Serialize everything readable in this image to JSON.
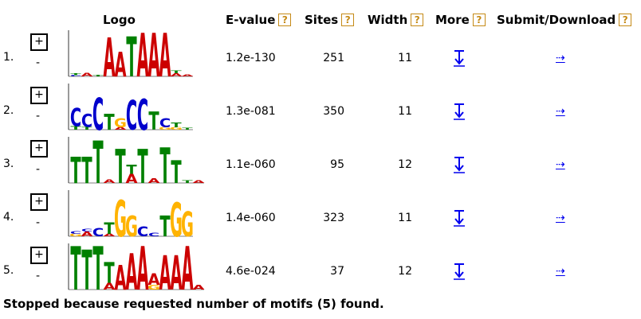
{
  "headers": {
    "logo": "Logo",
    "evalue": "E-value",
    "sites": "Sites",
    "width": "Width",
    "more": "More",
    "submit": "Submit/Download",
    "help_glyph": "?"
  },
  "controls": {
    "expand": "+",
    "collapse": "-",
    "download_arrow": "⇢"
  },
  "colors": {
    "A": "#cc0000",
    "C": "#0000cc",
    "G": "#ffb300",
    "T": "#008000",
    "link": "#0000ee",
    "help": "#c58a17"
  },
  "motifs": [
    {
      "num": "1.",
      "evalue": "1.2e-130",
      "sites": "251",
      "width": "11",
      "logo": [
        [
          [
            "C",
            0.03
          ],
          [
            "T",
            0.04
          ]
        ],
        [
          [
            "A",
            0.08
          ]
        ],
        [
          [
            "T",
            0.03
          ]
        ],
        [
          [
            "A",
            0.85
          ]
        ],
        [
          [
            "A",
            0.55
          ]
        ],
        [
          [
            "T",
            0.88
          ]
        ],
        [
          [
            "A",
            0.95
          ]
        ],
        [
          [
            "A",
            0.95
          ]
        ],
        [
          [
            "A",
            0.95
          ]
        ],
        [
          [
            "A",
            0.07
          ],
          [
            "T",
            0.05
          ]
        ],
        [
          [
            "A",
            0.04
          ]
        ]
      ]
    },
    {
      "num": "2.",
      "evalue": "1.3e-081",
      "sites": "350",
      "width": "11",
      "logo": [
        [
          [
            "T",
            0.08
          ],
          [
            "C",
            0.4
          ]
        ],
        [
          [
            "T",
            0.06
          ],
          [
            "C",
            0.28
          ]
        ],
        [
          [
            "C",
            0.7
          ]
        ],
        [
          [
            "T",
            0.35
          ]
        ],
        [
          [
            "A",
            0.05
          ],
          [
            "G",
            0.2
          ]
        ],
        [
          [
            "C",
            0.65
          ]
        ],
        [
          [
            "C",
            0.68
          ]
        ],
        [
          [
            "T",
            0.4
          ]
        ],
        [
          [
            "G",
            0.05
          ],
          [
            "C",
            0.2
          ]
        ],
        [
          [
            "G",
            0.05
          ],
          [
            "T",
            0.1
          ]
        ],
        [
          [
            "T",
            0.04
          ]
        ]
      ]
    },
    {
      "num": "3.",
      "evalue": "1.1e-060",
      "sites": "95",
      "width": "12",
      "logo": [
        [
          [
            "T",
            0.58
          ]
        ],
        [
          [
            "T",
            0.58
          ]
        ],
        [
          [
            "T",
            0.93
          ]
        ],
        [
          [
            "A",
            0.08
          ]
        ],
        [
          [
            "T",
            0.75
          ]
        ],
        [
          [
            "A",
            0.2
          ],
          [
            "T",
            0.2
          ]
        ],
        [
          [
            "T",
            0.75
          ]
        ],
        [
          [
            "A",
            0.1
          ]
        ],
        [
          [
            "T",
            0.78
          ]
        ],
        [
          [
            "T",
            0.5
          ]
        ],
        [
          [
            "T",
            0.05
          ]
        ],
        [
          [
            "A",
            0.05
          ]
        ]
      ]
    },
    {
      "num": "4.",
      "evalue": "1.4e-060",
      "sites": "323",
      "width": "11",
      "logo": [
        [
          [
            "G",
            0.05
          ],
          [
            "C",
            0.05
          ]
        ],
        [
          [
            "A",
            0.1
          ],
          [
            "C",
            0.05
          ]
        ],
        [
          [
            "C",
            0.18
          ]
        ],
        [
          [
            "A",
            0.05
          ],
          [
            "T",
            0.25
          ]
        ],
        [
          [
            "G",
            0.8
          ]
        ],
        [
          [
            "G",
            0.45
          ]
        ],
        [
          [
            "C",
            0.22
          ]
        ],
        [
          [
            "C",
            0.08
          ]
        ],
        [
          [
            "T",
            0.45
          ]
        ],
        [
          [
            "G",
            0.75
          ]
        ],
        [
          [
            "G",
            0.55
          ]
        ]
      ]
    },
    {
      "num": "5.",
      "evalue": "4.6e-024",
      "sites": "37",
      "width": "12",
      "logo": [
        [
          [
            "T",
            0.95
          ]
        ],
        [
          [
            "T",
            0.88
          ]
        ],
        [
          [
            "T",
            0.95
          ]
        ],
        [
          [
            "A",
            0.15
          ],
          [
            "T",
            0.45
          ]
        ],
        [
          [
            "A",
            0.55
          ]
        ],
        [
          [
            "A",
            0.8
          ]
        ],
        [
          [
            "A",
            0.95
          ]
        ],
        [
          [
            "G",
            0.1
          ],
          [
            "A",
            0.25
          ]
        ],
        [
          [
            "A",
            0.75
          ]
        ],
        [
          [
            "A",
            0.75
          ]
        ],
        [
          [
            "A",
            0.95
          ]
        ],
        [
          [
            "A",
            0.1
          ]
        ]
      ]
    }
  ],
  "footer": "Stopped because requested number of motifs (5) found."
}
